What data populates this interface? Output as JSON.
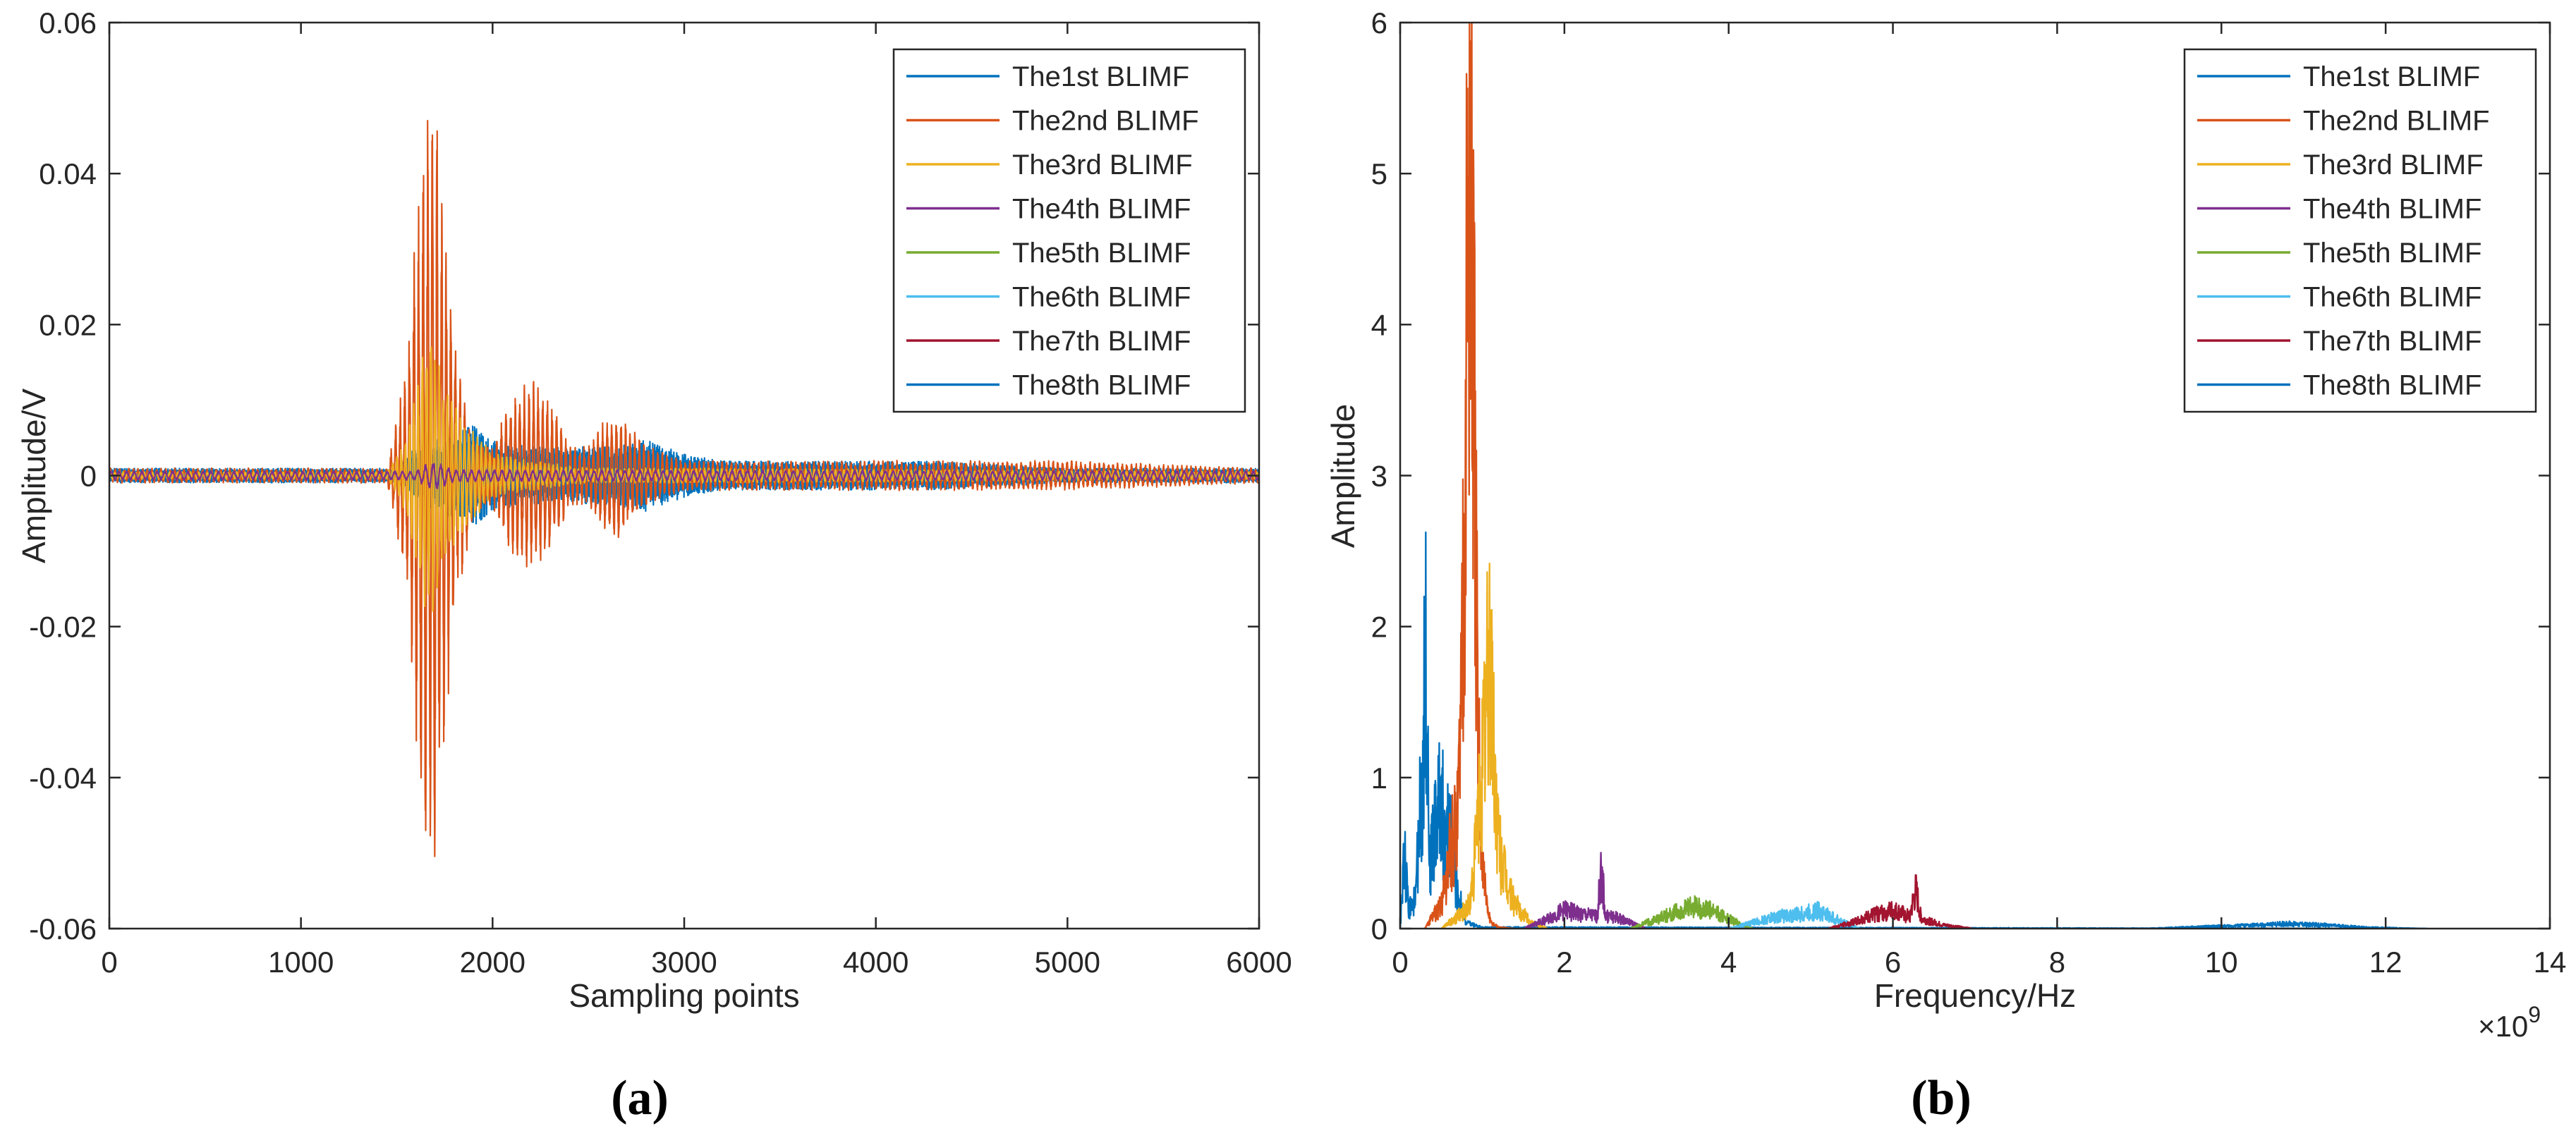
{
  "chart_data": [
    {
      "type": "line",
      "panel_label": "(a)",
      "title": "",
      "xlabel": "Sampling points",
      "ylabel": "Amplitude/V",
      "xlim": [
        0,
        6000
      ],
      "ylim": [
        -0.06,
        0.06
      ],
      "xticks": [
        0,
        1000,
        2000,
        3000,
        4000,
        5000,
        6000
      ],
      "xtick_labels": [
        "0",
        "1000",
        "2000",
        "3000",
        "4000",
        "5000",
        "6000"
      ],
      "yticks": [
        -0.06,
        -0.04,
        -0.02,
        0,
        0.02,
        0.04,
        0.06
      ],
      "ytick_labels": [
        "-0.06",
        "-0.04",
        "-0.02",
        "0",
        "0.02",
        "0.04",
        "0.06"
      ],
      "legend_position": "top-right",
      "legend": [
        "The1st BLIMF",
        "The2nd BLIMF",
        "The3rd BLIMF",
        "The4th BLIMF",
        "The5th BLIMF",
        "The6th BLIMF",
        "The7th BLIMF",
        "The8th BLIMF"
      ],
      "series": [
        {
          "name": "The1st BLIMF",
          "color": "#0072BD",
          "x": [
            0,
            1500,
            1600,
            1700,
            1800,
            1900,
            2000,
            2200,
            2400,
            2600,
            2800,
            3000,
            3200,
            3600,
            4000,
            4300,
            5000,
            6000
          ],
          "envelope": [
            0.001,
            0.001,
            0.004,
            0.005,
            0.006,
            0.007,
            0.005,
            0.004,
            0.004,
            0.004,
            0.005,
            0.003,
            0.002,
            0.002,
            0.002,
            0.002,
            0.001,
            0.001
          ]
        },
        {
          "name": "The2nd BLIMF",
          "color": "#D95319",
          "x": [
            0,
            1450,
            1550,
            1600,
            1650,
            1680,
            1720,
            1800,
            1900,
            2000,
            2100,
            2200,
            2300,
            2400,
            2500,
            2600,
            2650,
            2700,
            2800,
            2900,
            3000,
            3500,
            4000,
            5000,
            6000
          ],
          "envelope": [
            0.001,
            0.001,
            0.015,
            0.035,
            0.05,
            0.055,
            0.045,
            0.02,
            0.005,
            0.004,
            0.011,
            0.013,
            0.011,
            0.004,
            0.004,
            0.008,
            0.009,
            0.007,
            0.004,
            0.003,
            0.002,
            0.002,
            0.002,
            0.002,
            0.001
          ]
        },
        {
          "name": "The3rd BLIMF",
          "color": "#EDB120",
          "x": [
            0,
            1450,
            1550,
            1600,
            1650,
            1700,
            1750,
            1800,
            1850,
            1900,
            2000,
            2200,
            2500,
            3000,
            6000
          ],
          "envelope": [
            0.0005,
            0.0005,
            0.005,
            0.012,
            0.02,
            0.018,
            0.013,
            0.01,
            0.008,
            0.006,
            0.003,
            0.002,
            0.001,
            0.001,
            0.0005
          ]
        },
        {
          "name": "The4th BLIMF",
          "color": "#7E2F8E",
          "x": [
            0,
            1600,
            1650,
            1700,
            1800,
            6000
          ],
          "envelope": [
            0.0006,
            0.0006,
            0.0015,
            0.002,
            0.0008,
            0.0006
          ]
        },
        {
          "name": "The5th BLIMF",
          "color": "#77AC30",
          "x": [
            0,
            6000
          ],
          "envelope": [
            0.0006,
            0.0006
          ]
        },
        {
          "name": "The6th BLIMF",
          "color": "#4DBEEE",
          "x": [
            0,
            6000
          ],
          "envelope": [
            0.0005,
            0.0005
          ]
        },
        {
          "name": "The7th BLIMF",
          "color": "#A2142F",
          "x": [
            0,
            6000
          ],
          "envelope": [
            0.0005,
            0.0005
          ]
        },
        {
          "name": "The8th BLIMF",
          "color": "#0072BD",
          "x": [
            0,
            6000
          ],
          "envelope": [
            0.0004,
            0.0004
          ]
        }
      ]
    },
    {
      "type": "line",
      "panel_label": "(b)",
      "title": "",
      "xlabel": "Frequency/Hz",
      "ylabel": "Amplitude",
      "x_multiplier_label": "×10",
      "x_multiplier_exponent": "9",
      "xlim": [
        0,
        14
      ],
      "ylim": [
        0,
        6
      ],
      "xticks": [
        0,
        2,
        4,
        6,
        8,
        10,
        12,
        14
      ],
      "xtick_labels": [
        "0",
        "2",
        "4",
        "6",
        "8",
        "10",
        "12",
        "14"
      ],
      "yticks": [
        0,
        1,
        2,
        3,
        4,
        5,
        6
      ],
      "ytick_labels": [
        "0",
        "1",
        "2",
        "3",
        "4",
        "5",
        "6"
      ],
      "legend_position": "top-right",
      "legend": [
        "The1st BLIMF",
        "The2nd BLIMF",
        "The3rd BLIMF",
        "The4th BLIMF",
        "The5th BLIMF",
        "The6th BLIMF",
        "The7th BLIMF",
        "The8th BLIMF"
      ],
      "series": [
        {
          "name": "The1st BLIMF",
          "color": "#0072BD",
          "x": [
            0,
            0.05,
            0.1,
            0.15,
            0.2,
            0.28,
            0.32,
            0.36,
            0.4,
            0.45,
            0.5,
            0.55,
            0.6,
            0.65,
            0.7,
            0.8,
            1.0,
            12.5
          ],
          "y": [
            0.0,
            0.6,
            0.2,
            0.15,
            0.4,
            1.5,
            2.4,
            0.5,
            0.8,
            0.9,
            1.2,
            0.6,
            0.9,
            0.5,
            0.3,
            0.05,
            0.01,
            0.0
          ]
        },
        {
          "name": "The2nd BLIMF",
          "color": "#D95319",
          "x": [
            0.3,
            0.5,
            0.6,
            0.7,
            0.75,
            0.8,
            0.85,
            0.9,
            0.95,
            1.0,
            1.05,
            1.1,
            1.2,
            1.4
          ],
          "y": [
            0.0,
            0.2,
            0.6,
            0.9,
            2.0,
            4.5,
            5.95,
            4.0,
            1.5,
            0.6,
            0.2,
            0.05,
            0.01,
            0.0
          ]
        },
        {
          "name": "The3rd BLIMF",
          "color": "#EDB120",
          "x": [
            0.5,
            0.7,
            0.85,
            0.9,
            0.95,
            1.0,
            1.05,
            1.1,
            1.15,
            1.2,
            1.3,
            1.4,
            1.5,
            1.6,
            1.8
          ],
          "y": [
            0.0,
            0.1,
            0.2,
            0.5,
            0.9,
            1.3,
            1.8,
            2.3,
            1.2,
            0.7,
            0.35,
            0.2,
            0.12,
            0.05,
            0.0
          ]
        },
        {
          "name": "The4th BLIMF",
          "color": "#7E2F8E",
          "x": [
            1.5,
            1.8,
            2.0,
            2.2,
            2.4,
            2.45,
            2.5,
            2.6,
            2.8,
            3.0
          ],
          "y": [
            0.0,
            0.08,
            0.15,
            0.12,
            0.1,
            0.5,
            0.1,
            0.1,
            0.05,
            0.0
          ]
        },
        {
          "name": "The5th BLIMF",
          "color": "#77AC30",
          "x": [
            2.8,
            3.0,
            3.3,
            3.6,
            3.8,
            4.0,
            4.3
          ],
          "y": [
            0.0,
            0.05,
            0.12,
            0.18,
            0.14,
            0.08,
            0.0
          ]
        },
        {
          "name": "The6th BLIMF",
          "color": "#4DBEEE",
          "x": [
            4.0,
            4.3,
            4.6,
            4.9,
            5.1,
            5.3,
            5.6
          ],
          "y": [
            0.0,
            0.05,
            0.1,
            0.12,
            0.15,
            0.08,
            0.0
          ]
        },
        {
          "name": "The7th BLIMF",
          "color": "#A2142F",
          "x": [
            5.2,
            5.5,
            5.8,
            6.0,
            6.2,
            6.28,
            6.35,
            6.6,
            7.0
          ],
          "y": [
            0.0,
            0.05,
            0.12,
            0.15,
            0.1,
            0.3,
            0.08,
            0.03,
            0.0
          ]
        },
        {
          "name": "The8th BLIMF",
          "color": "#0072BD",
          "x": [
            9.0,
            9.5,
            10.0,
            10.5,
            10.8,
            11.2,
            11.8,
            12.5
          ],
          "y": [
            0.0,
            0.01,
            0.02,
            0.03,
            0.04,
            0.03,
            0.01,
            0.0
          ]
        }
      ]
    }
  ]
}
